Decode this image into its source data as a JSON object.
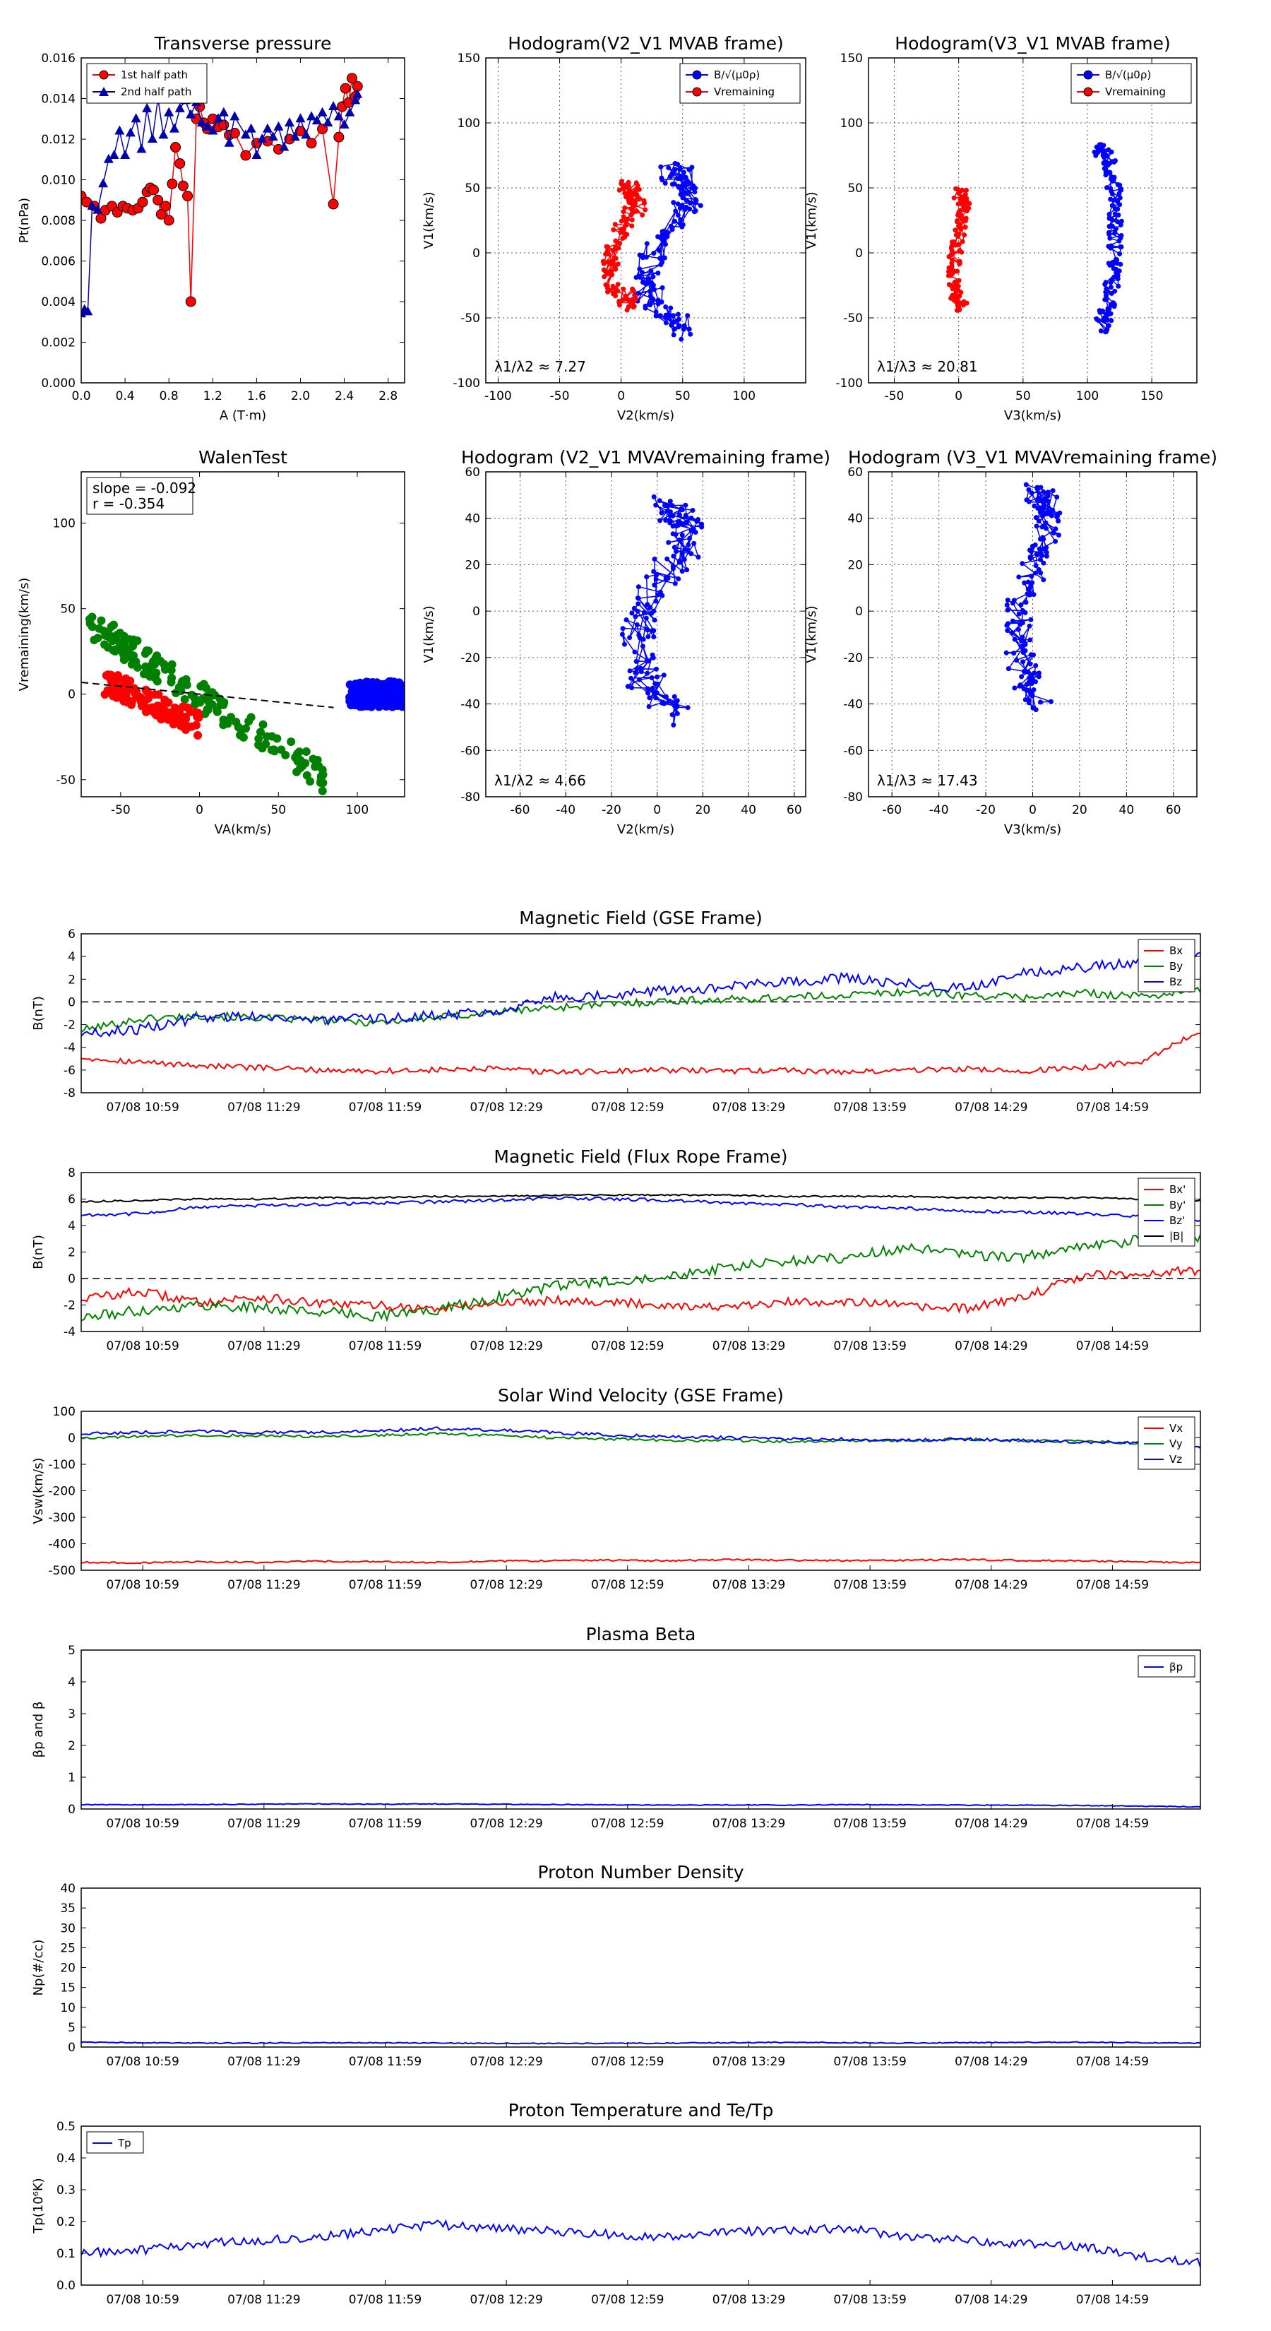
{
  "colors": {
    "red": "#ff0000",
    "blue": "#0000ff",
    "green": "#008000",
    "black": "#000000",
    "grid": "#555555"
  },
  "time_ticks": [
    "07/08 10:59",
    "07/08 11:29",
    "07/08 11:59",
    "07/08 12:29",
    "07/08 12:59",
    "07/08 13:29",
    "07/08 13:59",
    "07/08 14:29",
    "07/08 14:59"
  ],
  "chart_data": [
    {
      "id": "transverse_pressure",
      "type": "line",
      "title": "Transverse pressure",
      "xlabel": "A (T·m)",
      "ylabel": "Pt(nPa)",
      "xlim": [
        0.0,
        2.95
      ],
      "ylim": [
        0.0,
        0.016
      ],
      "xticks": [
        0.0,
        0.4,
        0.8,
        1.2,
        1.6,
        2.0,
        2.4,
        2.8
      ],
      "xticklabels": [
        "0.0",
        "0.4",
        "0.8",
        "1.2",
        "1.6",
        "2.0",
        "2.4",
        "2.8"
      ],
      "yticks": [
        0.0,
        0.002,
        0.004,
        0.006,
        0.008,
        0.01,
        0.012,
        0.014,
        0.016
      ],
      "yticklabels": [
        "0.000",
        "0.002",
        "0.004",
        "0.006",
        "0.008",
        "0.010",
        "0.012",
        "0.014",
        "0.016"
      ],
      "grid": false,
      "legend": "top-left",
      "series": [
        {
          "name": "1st half path",
          "color": "#ff0000",
          "marker": "circle",
          "x": [
            0.0,
            0.05,
            0.12,
            0.18,
            0.22,
            0.28,
            0.33,
            0.38,
            0.42,
            0.47,
            0.52,
            0.56,
            0.6,
            0.63,
            0.66,
            0.7,
            0.73,
            0.77,
            0.8,
            0.83,
            0.86,
            0.9,
            0.93,
            0.97,
            1.0,
            1.05,
            1.08,
            1.12,
            1.15,
            1.2,
            1.25,
            1.3,
            1.35,
            1.4,
            1.5,
            1.6,
            1.7,
            1.8,
            1.9,
            2.0,
            2.1,
            2.2,
            2.3,
            2.35,
            2.38,
            2.41,
            2.44,
            2.47,
            2.5,
            2.52
          ],
          "y": [
            0.0092,
            0.0089,
            0.0087,
            0.0081,
            0.0085,
            0.0087,
            0.0084,
            0.0087,
            0.0086,
            0.0085,
            0.0086,
            0.0089,
            0.0094,
            0.0096,
            0.0095,
            0.009,
            0.0083,
            0.0087,
            0.008,
            0.0098,
            0.0116,
            0.0108,
            0.0097,
            0.0092,
            0.004,
            0.013,
            0.0136,
            0.0128,
            0.0125,
            0.013,
            0.0126,
            0.0127,
            0.0122,
            0.0123,
            0.0112,
            0.0118,
            0.0119,
            0.0115,
            0.012,
            0.0124,
            0.0118,
            0.0125,
            0.0088,
            0.0121,
            0.0136,
            0.0145,
            0.0138,
            0.015,
            0.0141,
            0.0146
          ]
        },
        {
          "name": "2nd half path",
          "color": "#0000aa",
          "marker": "triangle",
          "x": [
            0.0,
            0.03,
            0.06,
            0.1,
            0.15,
            0.2,
            0.25,
            0.3,
            0.35,
            0.4,
            0.45,
            0.5,
            0.55,
            0.6,
            0.65,
            0.7,
            0.75,
            0.8,
            0.85,
            0.9,
            0.95,
            1.0,
            1.05,
            1.1,
            1.15,
            1.2,
            1.25,
            1.3,
            1.35,
            1.4,
            1.5,
            1.55,
            1.6,
            1.65,
            1.7,
            1.75,
            1.8,
            1.85,
            1.9,
            1.95,
            2.0,
            2.05,
            2.1,
            2.15,
            2.2,
            2.25,
            2.3,
            2.35,
            2.4,
            2.45,
            2.5,
            2.52
          ],
          "y": [
            0.0034,
            0.0036,
            0.0035,
            0.0087,
            0.0085,
            0.0098,
            0.011,
            0.0112,
            0.0124,
            0.0112,
            0.0123,
            0.013,
            0.0115,
            0.0135,
            0.012,
            0.014,
            0.0122,
            0.0133,
            0.0125,
            0.0135,
            0.0139,
            0.0132,
            0.0138,
            0.0128,
            0.0126,
            0.0124,
            0.013,
            0.0133,
            0.0118,
            0.0131,
            0.0122,
            0.0125,
            0.0112,
            0.012,
            0.0125,
            0.0121,
            0.0126,
            0.0116,
            0.0128,
            0.0121,
            0.013,
            0.0122,
            0.0131,
            0.0129,
            0.0133,
            0.0128,
            0.0136,
            0.0131,
            0.0127,
            0.0133,
            0.0139,
            0.0142
          ]
        }
      ]
    },
    {
      "id": "hodogram_v2_v1_mvab",
      "type": "line",
      "title": "Hodogram(V2_V1 MVAB frame)",
      "xlabel": "V2(km/s)",
      "ylabel": "V1(km/s)",
      "xlim": [
        -110,
        150
      ],
      "ylim": [
        -100,
        150
      ],
      "xticks": [
        -100,
        -50,
        0,
        50,
        100
      ],
      "yticks": [
        -100,
        -50,
        0,
        50,
        100,
        150
      ],
      "grid": true,
      "legend": "top-right",
      "annotation": "λ1/λ2 ≈ 7.27",
      "legend_entries": [
        "B/√(μ0ρ)",
        "Vremaining"
      ],
      "series": [
        {
          "name": "B/√(μ0ρ)",
          "color": "#0000ff",
          "center": [
            38,
            0
          ],
          "amp": [
            22,
            62
          ],
          "spread": 9,
          "n": 150,
          "seed": 11
        },
        {
          "name": "Vremaining",
          "color": "#ff0000",
          "center": [
            2,
            5
          ],
          "amp": [
            14,
            45
          ],
          "spread": 6,
          "n": 130,
          "seed": 23
        }
      ]
    },
    {
      "id": "hodogram_v3_v1_mvab",
      "type": "line",
      "title": "Hodogram(V3_V1 MVAB frame)",
      "xlabel": "V3(km/s)",
      "ylabel": "V1(km/s)",
      "xlim": [
        -70,
        185
      ],
      "ylim": [
        -100,
        150
      ],
      "xticks": [
        -50,
        0,
        50,
        100,
        150
      ],
      "yticks": [
        -100,
        -50,
        0,
        50,
        100,
        150
      ],
      "grid": true,
      "legend": "top-right",
      "annotation": "λ1/λ3 ≈ 20.81",
      "legend_entries": [
        "B/√(μ0ρ)",
        "Vremaining"
      ],
      "series": [
        {
          "name": "B/√(μ0ρ)",
          "color": "#0000ff",
          "center": [
            110,
            10
          ],
          "amp": [
            12,
            70
          ],
          "spread": 5,
          "n": 150,
          "seed": 37,
          "arc": 1
        },
        {
          "name": "Vremaining",
          "color": "#ff0000",
          "center": [
            0,
            0
          ],
          "amp": [
            5,
            45
          ],
          "spread": 4,
          "n": 130,
          "seed": 41
        }
      ]
    },
    {
      "id": "walen_test",
      "type": "scatter",
      "title": "WalenTest",
      "xlabel": "VA(km/s)",
      "ylabel": "Vremaining(km/s)",
      "xlim": [
        -75,
        130
      ],
      "ylim": [
        -60,
        130
      ],
      "xticks": [
        -50,
        0,
        50,
        100
      ],
      "yticks": [
        -50,
        0,
        50,
        100
      ],
      "grid": false,
      "legend": "top-left",
      "annotation": [
        "slope = -0.092",
        "r = -0.354"
      ],
      "fit_line": {
        "x": [
          -75,
          85
        ],
        "y": [
          6.9,
          -7.8
        ]
      },
      "series": [
        {
          "color": "#008000",
          "center": [
            -10,
            5
          ],
          "slope": -0.6,
          "xrange": [
            -70,
            80
          ],
          "spread": 6,
          "n": 160,
          "seed": 5
        },
        {
          "color": "#ff0000",
          "center": [
            -30,
            -5
          ],
          "slope": -0.4,
          "xrange": [
            -60,
            0
          ],
          "spread": 5,
          "n": 100,
          "seed": 9
        },
        {
          "color": "#0000ff",
          "center": [
            110,
            0
          ],
          "slope": 0,
          "xrange": [
            95,
            130
          ],
          "spread": 5,
          "n": 160,
          "seed": 13
        }
      ]
    },
    {
      "id": "hodogram_v2_v1_mvav",
      "type": "line",
      "title": "Hodogram (V2_V1 MVAVremaining frame)",
      "xlabel": "V2(km/s)",
      "ylabel": "V1(km/s)",
      "xlim": [
        -75,
        65
      ],
      "ylim": [
        -80,
        60
      ],
      "xticks": [
        -60,
        -40,
        -20,
        0,
        20,
        40,
        60
      ],
      "yticks": [
        -80,
        -60,
        -40,
        -20,
        0,
        20,
        40,
        60
      ],
      "grid": true,
      "annotation": "λ1/λ2 ≈ 4.66",
      "series": [
        {
          "color": "#0000ff",
          "center": [
            2,
            0
          ],
          "amp": [
            14,
            45
          ],
          "spread": 6,
          "n": 160,
          "seed": 17
        }
      ]
    },
    {
      "id": "hodogram_v3_v1_mvav",
      "type": "line",
      "title": "Hodogram (V3_V1 MVAVremaining frame)",
      "xlabel": "V3(km/s)",
      "ylabel": "V1(km/s)",
      "xlim": [
        -70,
        70
      ],
      "ylim": [
        -80,
        60
      ],
      "xticks": [
        -60,
        -40,
        -20,
        0,
        20,
        40,
        60
      ],
      "yticks": [
        -80,
        -60,
        -40,
        -20,
        0,
        20,
        40,
        60
      ],
      "grid": true,
      "annotation": "λ1/λ3 ≈ 17.43",
      "series": [
        {
          "color": "#0000ff",
          "center": [
            0,
            5
          ],
          "amp": [
            8,
            45
          ],
          "spread": 5,
          "n": 160,
          "seed": 29
        }
      ]
    },
    {
      "id": "magnetic_field_gse",
      "type": "line",
      "title": "Magnetic Field (GSE Frame)",
      "ylabel": "B(nT)",
      "ylim": [
        -8,
        6
      ],
      "yticks": [
        -8,
        -6,
        -4,
        -2,
        0,
        2,
        4,
        6
      ],
      "zero_line": true,
      "legend": "top-right",
      "series": [
        {
          "name": "Bx",
          "color": "#ff0000",
          "knots": [
            -4.9,
            -5.3,
            -5.6,
            -5.8,
            -6.0,
            -6.1,
            -6.0,
            -5.9,
            -6.2,
            -6.1,
            -6.0,
            -6.1,
            -6.0,
            -6.2,
            -6.0,
            -5.9,
            -6.1,
            -5.8,
            -5.2,
            -2.6
          ],
          "noise": 0.25
        },
        {
          "name": "By",
          "color": "#008000",
          "knots": [
            -2.5,
            -1.5,
            -1.2,
            -1.4,
            -1.6,
            -1.8,
            -1.4,
            -0.9,
            -0.5,
            -0.2,
            0.1,
            0.2,
            0.4,
            0.6,
            0.9,
            0.6,
            0.4,
            0.8,
            0.5,
            1.0
          ],
          "noise": 0.35
        },
        {
          "name": "Bz",
          "color": "#0000ff",
          "knots": [
            -2.8,
            -2.4,
            -1.4,
            -1.2,
            -1.6,
            -1.5,
            -1.2,
            -0.8,
            0.4,
            0.6,
            1.1,
            1.3,
            1.8,
            2.1,
            1.6,
            1.2,
            2.6,
            3.0,
            3.6,
            4.4
          ],
          "noise": 0.45
        }
      ]
    },
    {
      "id": "magnetic_field_flux_rope",
      "type": "line",
      "title": "Magnetic Field (Flux Rope Frame)",
      "ylabel": "B(nT)",
      "ylim": [
        -4,
        8
      ],
      "yticks": [
        -4,
        -2,
        0,
        2,
        4,
        6,
        8
      ],
      "zero_line": true,
      "legend": "top-right",
      "series": [
        {
          "name": "Bx'",
          "color": "#ff0000",
          "knots": [
            -1.5,
            -1.0,
            -1.8,
            -1.4,
            -1.9,
            -2.0,
            -2.3,
            -1.9,
            -1.6,
            -1.8,
            -2.0,
            -2.2,
            -1.8,
            -1.7,
            -2.1,
            -2.3,
            -1.4,
            0.2,
            0.4,
            0.6
          ],
          "noise": 0.35
        },
        {
          "name": "By'",
          "color": "#008000",
          "knots": [
            -3.0,
            -2.4,
            -2.0,
            -2.2,
            -2.5,
            -2.8,
            -2.4,
            -1.5,
            -0.6,
            -0.2,
            0.3,
            0.8,
            1.3,
            1.6,
            2.3,
            1.8,
            1.6,
            2.4,
            2.9,
            3.2
          ],
          "noise": 0.4
        },
        {
          "name": "Bz'",
          "color": "#0000ff",
          "knots": [
            4.8,
            4.9,
            5.4,
            5.5,
            5.6,
            5.7,
            5.8,
            5.9,
            6.1,
            6.0,
            5.9,
            5.7,
            5.6,
            5.4,
            5.3,
            5.1,
            5.0,
            4.9,
            4.7,
            4.3
          ],
          "noise": 0.12
        },
        {
          "name": "|B|",
          "color": "#000000",
          "knots": [
            5.8,
            5.9,
            6.0,
            6.0,
            6.1,
            6.1,
            6.2,
            6.2,
            6.3,
            6.3,
            6.3,
            6.3,
            6.2,
            6.2,
            6.2,
            6.1,
            6.1,
            6.1,
            6.0,
            5.9
          ],
          "noise": 0.06
        }
      ]
    },
    {
      "id": "solar_wind_velocity_gse",
      "type": "line",
      "title": "Solar Wind Velocity (GSE Frame)",
      "ylabel": "Vsw(km/s)",
      "ylim": [
        -500,
        100
      ],
      "yticks": [
        -500,
        -400,
        -300,
        -200,
        -100,
        0,
        100
      ],
      "legend": "top-right",
      "series": [
        {
          "name": "Vx",
          "color": "#ff0000",
          "knots": [
            -470,
            -472,
            -468,
            -470,
            -466,
            -468,
            -470,
            -466,
            -464,
            -462,
            -464,
            -460,
            -462,
            -464,
            -462,
            -460,
            -463,
            -465,
            -468,
            -472
          ],
          "noise": 3
        },
        {
          "name": "Vy",
          "color": "#008000",
          "knots": [
            0,
            5,
            10,
            8,
            5,
            10,
            15,
            10,
            0,
            -5,
            -10,
            -10,
            -15,
            -10,
            -10,
            -5,
            -10,
            -15,
            -20,
            -30
          ],
          "noise": 5
        },
        {
          "name": "Vz",
          "color": "#0000ff",
          "knots": [
            15,
            20,
            25,
            20,
            20,
            25,
            35,
            30,
            20,
            10,
            5,
            0,
            -5,
            -5,
            -10,
            -5,
            -10,
            -15,
            -20,
            -35
          ],
          "noise": 6
        }
      ]
    },
    {
      "id": "plasma_beta",
      "type": "line",
      "title": "Plasma Beta",
      "ylabel": "βp and β",
      "ylim": [
        0,
        5
      ],
      "yticks": [
        0,
        1,
        2,
        3,
        4,
        5
      ],
      "legend": "top-right",
      "series": [
        {
          "name": "βp",
          "color": "#0000ff",
          "knots": [
            0.14,
            0.13,
            0.14,
            0.15,
            0.16,
            0.15,
            0.16,
            0.15,
            0.14,
            0.13,
            0.12,
            0.13,
            0.12,
            0.14,
            0.13,
            0.12,
            0.12,
            0.11,
            0.09,
            0.07
          ],
          "noise": 0.012
        }
      ]
    },
    {
      "id": "proton_number_density",
      "type": "line",
      "title": "Proton Number Density",
      "ylabel": "Np(#/cc)",
      "ylim": [
        0,
        40
      ],
      "yticks": [
        0,
        5,
        10,
        15,
        20,
        25,
        30,
        35,
        40
      ],
      "series": [
        {
          "name": "Np",
          "color": "#0000ff",
          "knots": [
            1.2,
            1.1,
            1.0,
            1.0,
            1.1,
            1.1,
            1.0,
            0.9,
            0.9,
            0.9,
            1.0,
            1.1,
            1.2,
            1.1,
            1.0,
            1.1,
            1.2,
            1.2,
            1.1,
            1.0
          ],
          "noise": 0.12
        }
      ]
    },
    {
      "id": "proton_temperature",
      "type": "line",
      "title": "Proton Temperature and Te/Tp",
      "ylabel": "Tp(10⁶K)",
      "ylim": [
        0,
        0.5
      ],
      "yticks": [
        0.0,
        0.1,
        0.2,
        0.3,
        0.4,
        0.5
      ],
      "yticklabels": [
        "0.0",
        "0.1",
        "0.2",
        "0.3",
        "0.4",
        "0.5"
      ],
      "legend": "top-left",
      "series": [
        {
          "name": "Tp",
          "color": "#0000ff",
          "knots": [
            0.1,
            0.11,
            0.13,
            0.14,
            0.15,
            0.17,
            0.19,
            0.18,
            0.17,
            0.16,
            0.15,
            0.17,
            0.17,
            0.18,
            0.15,
            0.14,
            0.13,
            0.12,
            0.09,
            0.07
          ],
          "noise": 0.014
        }
      ]
    }
  ]
}
